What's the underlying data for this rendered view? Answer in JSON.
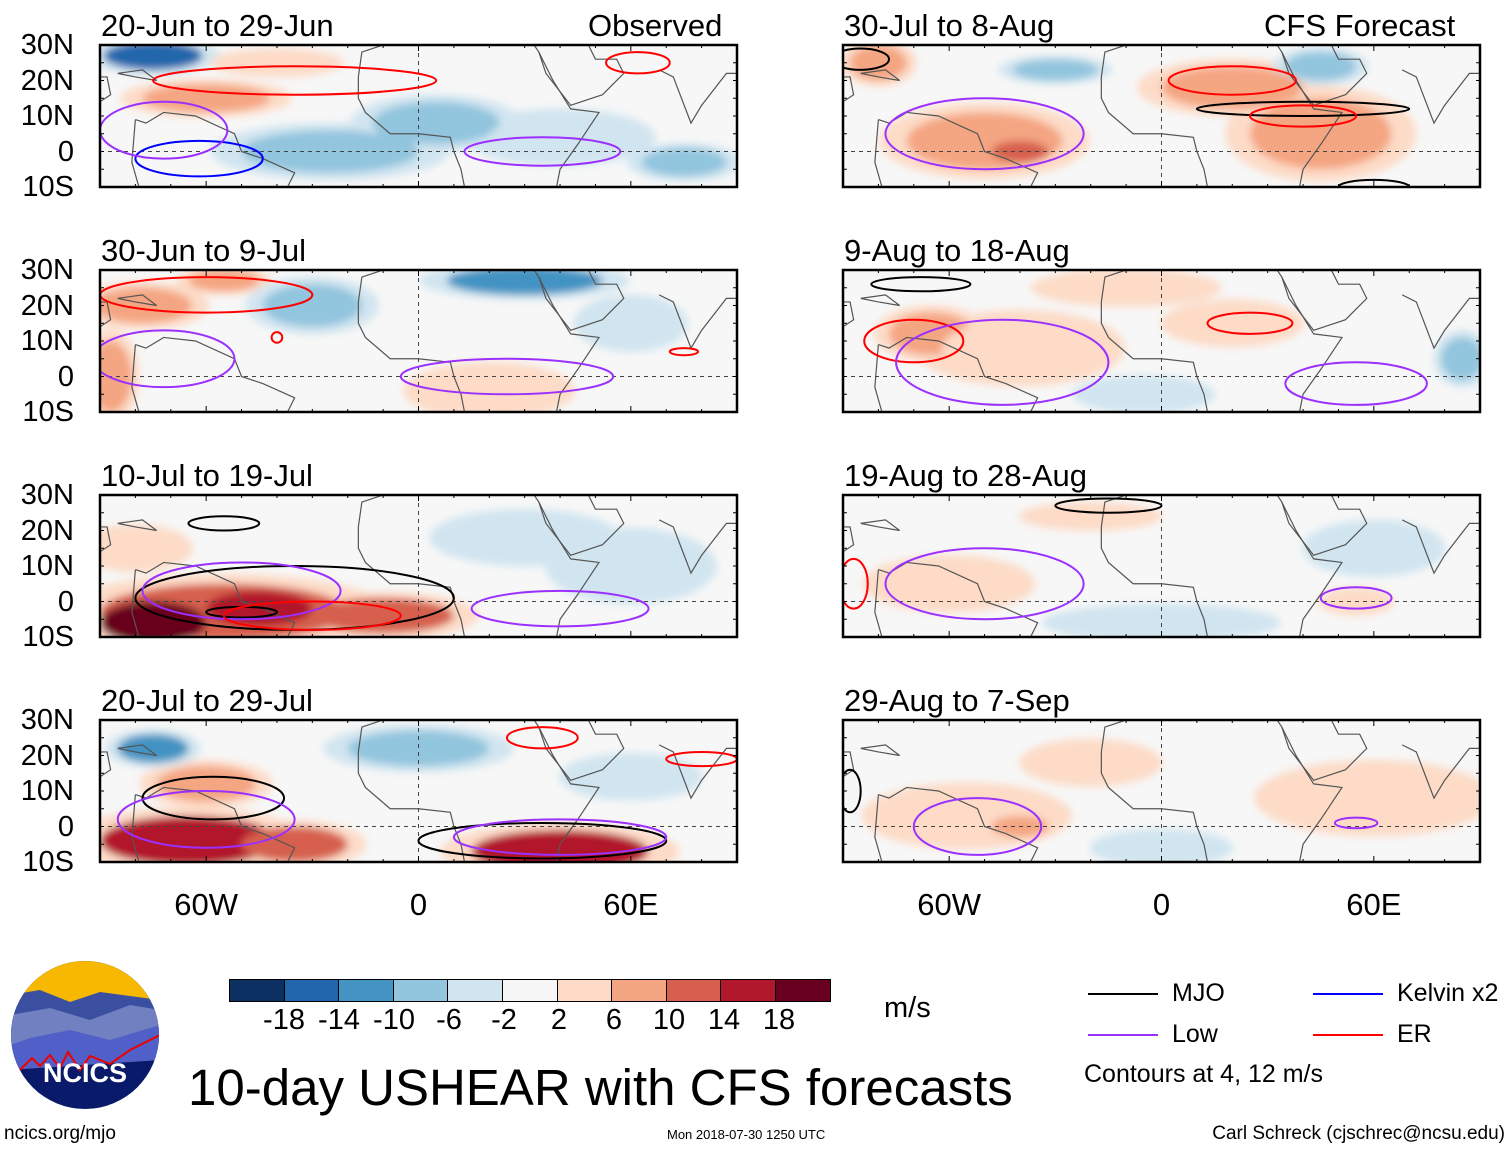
{
  "title": "10-day USHEAR with CFS forecasts",
  "units": "m/s",
  "footer": {
    "left": "ncics.org/mjo",
    "center": "Mon 2018-07-30 1250 UTC",
    "right": "Carl Schreck (cjschrec@ncsu.edu)"
  },
  "logo_text": "NCICS",
  "column_labels": {
    "left": "Observed",
    "right": "CFS Forecast"
  },
  "colorbar": {
    "ticks": [
      "-18",
      "-14",
      "-10",
      "-6",
      "-2",
      "2",
      "6",
      "10",
      "14",
      "18"
    ],
    "levels": [
      -18,
      -14,
      -10,
      -6,
      -2,
      2,
      6,
      10,
      14,
      18
    ],
    "colors": [
      "#0c3062",
      "#2166ac",
      "#4393c3",
      "#92c5de",
      "#d1e5f0",
      "#f7f7f7",
      "#fddbc7",
      "#f4a582",
      "#d6604d",
      "#b2182b",
      "#67001f"
    ]
  },
  "legend": {
    "items": [
      {
        "label": "MJO",
        "color": "#000000"
      },
      {
        "label": "Kelvin x2",
        "color": "#0000ff"
      },
      {
        "label": "Low",
        "color": "#9b30ff"
      },
      {
        "label": "ER",
        "color": "#ff0000"
      }
    ],
    "note": "Contours at 4, 12 m/s"
  },
  "chart_data": {
    "type": "heatmap",
    "variable": "USHEAR anomaly (m/s)",
    "lon_range": [
      -90,
      90
    ],
    "lat_range": [
      -10,
      30
    ],
    "lat_ticks": [
      "30N",
      "20N",
      "10N",
      "0",
      "10S"
    ],
    "lon_ticks": [
      "60W",
      "0",
      "60E"
    ],
    "lon_tick_values": [
      -60,
      0,
      60
    ],
    "contour_colors": {
      "MJO": "#000000",
      "Kelvin": "#0000ff",
      "Low": "#9b30ff",
      "ER": "#ff0000"
    },
    "panels": [
      {
        "title": "20-Jun to 29-Jun",
        "column": "left",
        "row": 0,
        "fields": [
          {
            "lon": -75,
            "lat": 27,
            "rx": 14,
            "ry": 4,
            "v": -15
          },
          {
            "lon": -60,
            "lat": 15,
            "rx": 18,
            "ry": 4,
            "v": 7
          },
          {
            "lon": -40,
            "lat": 25,
            "rx": 14,
            "ry": 3,
            "v": 4
          },
          {
            "lon": -25,
            "lat": 0,
            "rx": 25,
            "ry": 6,
            "v": -8
          },
          {
            "lon": 5,
            "lat": 8,
            "rx": 18,
            "ry": 6,
            "v": -6
          },
          {
            "lon": 40,
            "lat": 4,
            "rx": 20,
            "ry": 6,
            "v": -5
          },
          {
            "lon": 75,
            "lat": -3,
            "rx": 12,
            "ry": 4,
            "v": -8
          }
        ],
        "contours": [
          {
            "type": "Kelvin",
            "lon": -62,
            "lat": -2,
            "rx": 18,
            "ry": 5
          },
          {
            "type": "Low",
            "lon": -72,
            "lat": 6,
            "rx": 18,
            "ry": 8
          },
          {
            "type": "Low",
            "lon": 35,
            "lat": 0,
            "rx": 22,
            "ry": 4
          },
          {
            "type": "ER",
            "lon": -35,
            "lat": 20,
            "rx": 40,
            "ry": 4
          },
          {
            "type": "ER",
            "lon": 62,
            "lat": 25,
            "rx": 9,
            "ry": 3
          }
        ]
      },
      {
        "title": "30-Jun to 9-Jul",
        "column": "left",
        "row": 1,
        "fields": [
          {
            "lon": -78,
            "lat": 20,
            "rx": 14,
            "ry": 5,
            "v": 9
          },
          {
            "lon": -55,
            "lat": 27,
            "rx": 10,
            "ry": 3,
            "v": 10
          },
          {
            "lon": -30,
            "lat": 20,
            "rx": 14,
            "ry": 6,
            "v": -7
          },
          {
            "lon": 30,
            "lat": 27,
            "rx": 22,
            "ry": 4,
            "v": -12
          },
          {
            "lon": 20,
            "lat": -4,
            "rx": 18,
            "ry": 6,
            "v": 6
          },
          {
            "lon": -87,
            "lat": 0,
            "rx": 6,
            "ry": 10,
            "v": 7
          },
          {
            "lon": 60,
            "lat": 15,
            "rx": 12,
            "ry": 6,
            "v": -4
          }
        ],
        "contours": [
          {
            "type": "ER",
            "lon": -60,
            "lat": 23,
            "rx": 30,
            "ry": 5
          },
          {
            "type": "Low",
            "lon": -72,
            "lat": 5,
            "rx": 20,
            "ry": 8
          },
          {
            "type": "Low",
            "lon": 25,
            "lat": 0,
            "rx": 30,
            "ry": 5
          },
          {
            "type": "ER",
            "lon": -40,
            "lat": 11,
            "rx": 1.5,
            "ry": 1.5
          },
          {
            "type": "ER",
            "lon": 75,
            "lat": 7,
            "rx": 4,
            "ry": 1
          }
        ]
      },
      {
        "title": "10-Jul to 19-Jul",
        "column": "left",
        "row": 2,
        "fields": [
          {
            "lon": -55,
            "lat": -3,
            "rx": 35,
            "ry": 8,
            "v": 12
          },
          {
            "lon": -75,
            "lat": -6,
            "rx": 15,
            "ry": 6,
            "v": 20
          },
          {
            "lon": -45,
            "lat": -2,
            "rx": 15,
            "ry": 5,
            "v": 16
          },
          {
            "lon": -10,
            "lat": -4,
            "rx": 20,
            "ry": 5,
            "v": 12
          },
          {
            "lon": -80,
            "lat": 15,
            "rx": 12,
            "ry": 5,
            "v": 6
          },
          {
            "lon": 30,
            "lat": 18,
            "rx": 20,
            "ry": 6,
            "v": -5
          },
          {
            "lon": 60,
            "lat": 10,
            "rx": 18,
            "ry": 8,
            "v": -4
          }
        ],
        "contours": [
          {
            "type": "MJO",
            "lon": -35,
            "lat": 1,
            "rx": 45,
            "ry": 9
          },
          {
            "type": "MJO",
            "lon": -50,
            "lat": -3,
            "rx": 10,
            "ry": 1.5
          },
          {
            "type": "MJO",
            "lon": -55,
            "lat": 22,
            "rx": 10,
            "ry": 2
          },
          {
            "type": "Low",
            "lon": -50,
            "lat": 3,
            "rx": 28,
            "ry": 8
          },
          {
            "type": "Low",
            "lon": 40,
            "lat": -2,
            "rx": 25,
            "ry": 5
          },
          {
            "type": "ER",
            "lon": -30,
            "lat": -4,
            "rx": 25,
            "ry": 4
          }
        ]
      },
      {
        "title": "20-Jul to 29-Jul",
        "column": "left",
        "row": 3,
        "fields": [
          {
            "lon": -65,
            "lat": -4,
            "rx": 25,
            "ry": 7,
            "v": 16
          },
          {
            "lon": -35,
            "lat": -5,
            "rx": 15,
            "ry": 5,
            "v": 12
          },
          {
            "lon": 40,
            "lat": -7,
            "rx": 25,
            "ry": 6,
            "v": 18
          },
          {
            "lon": -60,
            "lat": 12,
            "rx": 14,
            "ry": 5,
            "v": 9
          },
          {
            "lon": -75,
            "lat": 22,
            "rx": 10,
            "ry": 4,
            "v": -12
          },
          {
            "lon": 0,
            "lat": 22,
            "rx": 20,
            "ry": 5,
            "v": -6
          },
          {
            "lon": 60,
            "lat": 14,
            "rx": 15,
            "ry": 5,
            "v": -4
          }
        ],
        "contours": [
          {
            "type": "MJO",
            "lon": -58,
            "lat": 8,
            "rx": 20,
            "ry": 6
          },
          {
            "type": "MJO",
            "lon": 35,
            "lat": -4,
            "rx": 35,
            "ry": 5
          },
          {
            "type": "Low",
            "lon": -60,
            "lat": 2,
            "rx": 25,
            "ry": 8
          },
          {
            "type": "Low",
            "lon": 40,
            "lat": -3,
            "rx": 30,
            "ry": 5
          },
          {
            "type": "ER",
            "lon": 35,
            "lat": 25,
            "rx": 10,
            "ry": 3
          },
          {
            "type": "ER",
            "lon": 80,
            "lat": 19,
            "rx": 10,
            "ry": 2
          }
        ]
      },
      {
        "title": "30-Jul to 8-Aug",
        "column": "right",
        "row": 0,
        "fields": [
          {
            "lon": -50,
            "lat": 3,
            "rx": 22,
            "ry": 8,
            "v": 8
          },
          {
            "lon": -40,
            "lat": 0,
            "rx": 8,
            "ry": 3,
            "v": 11
          },
          {
            "lon": 20,
            "lat": 18,
            "rx": 20,
            "ry": 6,
            "v": 7
          },
          {
            "lon": 45,
            "lat": 5,
            "rx": 20,
            "ry": 10,
            "v": 7
          },
          {
            "lon": -30,
            "lat": 23,
            "rx": 12,
            "ry": 3,
            "v": -6
          },
          {
            "lon": 45,
            "lat": 24,
            "rx": 10,
            "ry": 4,
            "v": -8
          },
          {
            "lon": -80,
            "lat": 25,
            "rx": 8,
            "ry": 5,
            "v": 10
          }
        ],
        "contours": [
          {
            "type": "Low",
            "lon": -50,
            "lat": 5,
            "rx": 28,
            "ry": 10
          },
          {
            "type": "MJO",
            "lon": 40,
            "lat": 12,
            "rx": 30,
            "ry": 2
          },
          {
            "type": "ER",
            "lon": 20,
            "lat": 20,
            "rx": 18,
            "ry": 4
          },
          {
            "type": "ER",
            "lon": 40,
            "lat": 10,
            "rx": 15,
            "ry": 3
          },
          {
            "type": "MJO",
            "lon": -85,
            "lat": 26,
            "rx": 8,
            "ry": 3
          },
          {
            "type": "MJO",
            "lon": 60,
            "lat": -10,
            "rx": 10,
            "ry": 2
          }
        ]
      },
      {
        "title": "9-Aug to 18-Aug",
        "column": "right",
        "row": 1,
        "fields": [
          {
            "lon": -65,
            "lat": 12,
            "rx": 12,
            "ry": 6,
            "v": 9
          },
          {
            "lon": -40,
            "lat": 8,
            "rx": 22,
            "ry": 8,
            "v": 4
          },
          {
            "lon": -10,
            "lat": 25,
            "rx": 20,
            "ry": 4,
            "v": 4
          },
          {
            "lon": 20,
            "lat": 15,
            "rx": 15,
            "ry": 5,
            "v": 4
          },
          {
            "lon": 85,
            "lat": 5,
            "rx": 6,
            "ry": 6,
            "v": -6
          },
          {
            "lon": -5,
            "lat": -5,
            "rx": 15,
            "ry": 4,
            "v": -3
          }
        ],
        "contours": [
          {
            "type": "ER",
            "lon": -70,
            "lat": 10,
            "rx": 14,
            "ry": 6
          },
          {
            "type": "MJO",
            "lon": -68,
            "lat": 26,
            "rx": 14,
            "ry": 2
          },
          {
            "type": "Low",
            "lon": -45,
            "lat": 4,
            "rx": 30,
            "ry": 12
          },
          {
            "type": "Low",
            "lon": 55,
            "lat": -2,
            "rx": 20,
            "ry": 6
          },
          {
            "type": "ER",
            "lon": 25,
            "lat": 15,
            "rx": 12,
            "ry": 3
          }
        ]
      },
      {
        "title": "19-Aug to 28-Aug",
        "column": "right",
        "row": 2,
        "fields": [
          {
            "lon": -60,
            "lat": 5,
            "rx": 18,
            "ry": 6,
            "v": 6
          },
          {
            "lon": -20,
            "lat": 24,
            "rx": 15,
            "ry": 3,
            "v": 4
          },
          {
            "lon": 0,
            "lat": -6,
            "rx": 25,
            "ry": 4,
            "v": -4
          },
          {
            "lon": 60,
            "lat": 15,
            "rx": 15,
            "ry": 6,
            "v": -3
          },
          {
            "lon": 55,
            "lat": 0,
            "rx": 8,
            "ry": 3,
            "v": 4
          }
        ],
        "contours": [
          {
            "type": "Low",
            "lon": -50,
            "lat": 5,
            "rx": 28,
            "ry": 10
          },
          {
            "type": "MJO",
            "lon": -15,
            "lat": 27,
            "rx": 15,
            "ry": 2
          },
          {
            "type": "Low",
            "lon": 55,
            "lat": 1,
            "rx": 10,
            "ry": 3
          },
          {
            "type": "ER",
            "lon": -87,
            "lat": 5,
            "rx": 4,
            "ry": 7
          }
        ]
      },
      {
        "title": "29-Aug to 7-Sep",
        "column": "right",
        "row": 3,
        "fields": [
          {
            "lon": -55,
            "lat": 3,
            "rx": 22,
            "ry": 7,
            "v": 5
          },
          {
            "lon": -40,
            "lat": 0,
            "rx": 8,
            "ry": 3,
            "v": 7
          },
          {
            "lon": -20,
            "lat": 18,
            "rx": 15,
            "ry": 5,
            "v": 3
          },
          {
            "lon": 60,
            "lat": 8,
            "rx": 25,
            "ry": 8,
            "v": 4
          },
          {
            "lon": 0,
            "lat": -6,
            "rx": 15,
            "ry": 4,
            "v": -3
          }
        ],
        "contours": [
          {
            "type": "Low",
            "lon": -52,
            "lat": 0,
            "rx": 18,
            "ry": 8
          },
          {
            "type": "Low",
            "lon": 55,
            "lat": 1,
            "rx": 6,
            "ry": 1.5
          },
          {
            "type": "MJO",
            "lon": -88,
            "lat": 10,
            "rx": 3,
            "ry": 6
          }
        ]
      }
    ]
  }
}
